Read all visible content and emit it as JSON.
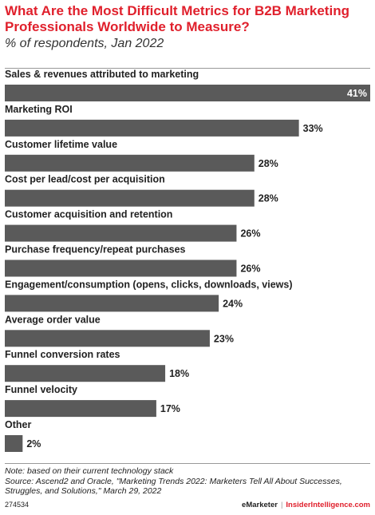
{
  "header": {
    "title": "What Are the Most Difficult Metrics for B2B Marketing Professionals Worldwide to Measure?",
    "subtitle": "% of respondents, Jan 2022"
  },
  "chart_data": {
    "type": "bar",
    "orientation": "horizontal",
    "categories": [
      "Sales & revenues attributed to marketing",
      "Marketing ROI",
      "Customer lifetime value",
      "Cost per lead/cost per acquisition",
      "Customer acquisition and retention",
      "Purchase frequency/repeat purchases",
      "Engagement/consumption (opens, clicks, downloads, views)",
      "Average order value",
      "Funnel conversion rates",
      "Funnel velocity",
      "Other"
    ],
    "values": [
      41,
      33,
      28,
      28,
      26,
      26,
      24,
      23,
      18,
      17,
      2
    ],
    "data_labels": [
      "41%",
      "33%",
      "28%",
      "28%",
      "26%",
      "26%",
      "24%",
      "23%",
      "18%",
      "17%",
      "2%"
    ],
    "title": "What Are the Most Difficult Metrics for B2B Marketing Professionals Worldwide to Measure?",
    "subtitle": "% of respondents, Jan 2022",
    "xlim": [
      0,
      41
    ],
    "grid": false,
    "bar_color": "#5a5a5a"
  },
  "notes": {
    "note": "Note: based on their current technology stack",
    "source": "Source: Ascend2 and Oracle, \"Marketing Trends 2022: Marketers Tell All About Successes, Struggles, and Solutions,\" March 29, 2022"
  },
  "footer": {
    "chart_id": "274534",
    "brand1": "eMarketer",
    "separator": "|",
    "brand2": "InsiderIntelligence.com"
  },
  "colors": {
    "title": "#e0202c",
    "bar": "#5a5a5a",
    "text": "#222222"
  }
}
